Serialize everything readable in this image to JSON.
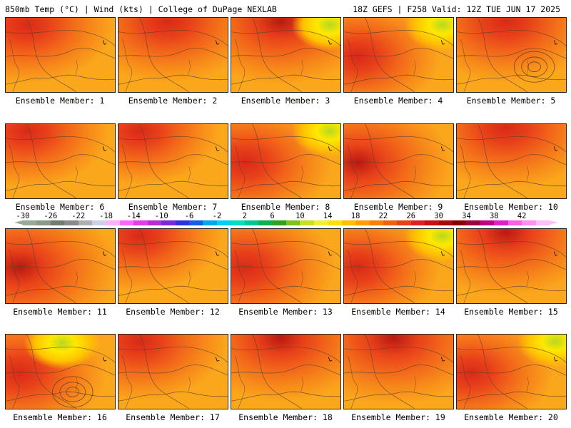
{
  "header": {
    "left": "850mb Temp (°C) | Wind (kts) | College of DuPage NEXLAB",
    "right": "18Z GEFS | F258 Valid: 12Z TUE JUN 17 2025"
  },
  "caption_prefix": "Ensemble Member: ",
  "members": [
    {
      "label": "Ensemble Member: 1",
      "hot": "nw",
      "intensity": 0.7
    },
    {
      "label": "Ensemble Member: 2",
      "hot": "n",
      "intensity": 0.8
    },
    {
      "label": "Ensemble Member: 3",
      "hot": "n",
      "intensity": 0.9,
      "cool": "ne"
    },
    {
      "label": "Ensemble Member: 4",
      "hot": "w",
      "intensity": 0.6,
      "cool": "ne"
    },
    {
      "label": "Ensemble Member: 5",
      "hot": "n",
      "intensity": 0.8,
      "low": "se"
    },
    {
      "label": "Ensemble Member: 6",
      "hot": "nw",
      "intensity": 0.6
    },
    {
      "label": "Ensemble Member: 7",
      "hot": "nw",
      "intensity": 0.5
    },
    {
      "label": "Ensemble Member: 8",
      "hot": "w",
      "intensity": 0.7,
      "cool": "ne"
    },
    {
      "label": "Ensemble Member: 9",
      "hot": "w",
      "intensity": 0.9
    },
    {
      "label": "Ensemble Member: 10",
      "hot": "n",
      "intensity": 0.8
    },
    {
      "label": "Ensemble Member: 11",
      "hot": "w",
      "intensity": 1.0
    },
    {
      "label": "Ensemble Member: 12",
      "hot": "nw",
      "intensity": 0.6
    },
    {
      "label": "Ensemble Member: 13",
      "hot": "w",
      "intensity": 0.8
    },
    {
      "label": "Ensemble Member: 14",
      "hot": "w",
      "intensity": 0.6,
      "cool": "ne"
    },
    {
      "label": "Ensemble Member: 15",
      "hot": "n",
      "intensity": 0.9
    },
    {
      "label": "Ensemble Member: 16",
      "hot": "w",
      "intensity": 0.7,
      "cool": "n",
      "low": "s"
    },
    {
      "label": "Ensemble Member: 17",
      "hot": "nw",
      "intensity": 0.7
    },
    {
      "label": "Ensemble Member: 18",
      "hot": "n",
      "intensity": 0.9
    },
    {
      "label": "Ensemble Member: 19",
      "hot": "n",
      "intensity": 1.0
    },
    {
      "label": "Ensemble Member: 20",
      "hot": "w",
      "intensity": 0.6,
      "cool": "ne"
    }
  ],
  "colorbar": {
    "labels": [
      "-30",
      "-26",
      "-22",
      "-18",
      "-14",
      "-10",
      "-6",
      "-2",
      "2",
      "6",
      "10",
      "14",
      "18",
      "22",
      "26",
      "30",
      "34",
      "38",
      "42"
    ],
    "colors": [
      "#9aaa98",
      "#8a9a88",
      "#707c70",
      "#8a8a8a",
      "#b0b0b0",
      "#cfcfe8",
      "#ffb0ff",
      "#ff66ff",
      "#e040e0",
      "#b030d0",
      "#7a2ad8",
      "#3030e0",
      "#1a5ae8",
      "#00a8e8",
      "#00d0f0",
      "#00e0c0",
      "#00c890",
      "#10b050",
      "#30a020",
      "#80c020",
      "#c8e020",
      "#f0f030",
      "#ffe000",
      "#ffc000",
      "#fca000",
      "#f88000",
      "#f06010",
      "#e84018",
      "#e02020",
      "#c81010",
      "#a80808",
      "#880000",
      "#a00040",
      "#c00080",
      "#e020c0",
      "#ff60e0",
      "#ff90f0",
      "#ffc0f8"
    ]
  }
}
